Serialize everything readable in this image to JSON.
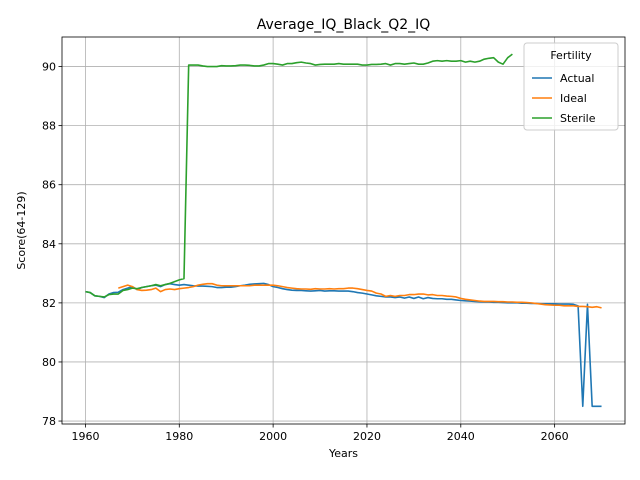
{
  "chart_data": {
    "type": "line",
    "title": "Average_IQ_Black_Q2_IQ",
    "xlabel": "Years",
    "ylabel": "Score(64-129)",
    "xlim": [
      1955,
      2075
    ],
    "ylim": [
      77.9,
      91.0
    ],
    "xticks": [
      1960,
      1980,
      2000,
      2020,
      2040,
      2060
    ],
    "yticks": [
      78,
      80,
      82,
      84,
      86,
      88,
      90
    ],
    "grid": true,
    "legend": {
      "title": "Fertility",
      "placement": "top-right"
    },
    "series": [
      {
        "name": "Actual",
        "color": "#1f77b4",
        "points": [
          [
            1960,
            82.38
          ],
          [
            1961,
            82.35
          ],
          [
            1962,
            82.24
          ],
          [
            1963,
            82.22
          ],
          [
            1964,
            82.18
          ],
          [
            1965,
            82.3
          ],
          [
            1966,
            82.35
          ],
          [
            1967,
            82.36
          ],
          [
            1968,
            82.45
          ],
          [
            1969,
            82.5
          ],
          [
            1970,
            82.55
          ],
          [
            1971,
            82.45
          ],
          [
            1972,
            82.52
          ],
          [
            1973,
            82.55
          ],
          [
            1974,
            82.58
          ],
          [
            1975,
            82.6
          ],
          [
            1976,
            82.55
          ],
          [
            1977,
            82.62
          ],
          [
            1978,
            82.65
          ],
          [
            1979,
            82.62
          ],
          [
            1980,
            82.6
          ],
          [
            1981,
            82.62
          ],
          [
            1982,
            82.6
          ],
          [
            1983,
            82.58
          ],
          [
            1984,
            82.57
          ],
          [
            1985,
            82.57
          ],
          [
            1986,
            82.56
          ],
          [
            1987,
            82.55
          ],
          [
            1988,
            82.52
          ],
          [
            1989,
            82.52
          ],
          [
            1990,
            82.53
          ],
          [
            1991,
            82.53
          ],
          [
            1992,
            82.55
          ],
          [
            1993,
            82.58
          ],
          [
            1994,
            82.6
          ],
          [
            1995,
            82.63
          ],
          [
            1996,
            82.64
          ],
          [
            1997,
            82.65
          ],
          [
            1998,
            82.66
          ],
          [
            1999,
            82.62
          ],
          [
            2000,
            82.55
          ],
          [
            2001,
            82.52
          ],
          [
            2002,
            82.48
          ],
          [
            2003,
            82.45
          ],
          [
            2004,
            82.43
          ],
          [
            2005,
            82.42
          ],
          [
            2006,
            82.42
          ],
          [
            2007,
            82.41
          ],
          [
            2008,
            82.4
          ],
          [
            2009,
            82.41
          ],
          [
            2010,
            82.42
          ],
          [
            2011,
            82.4
          ],
          [
            2012,
            82.41
          ],
          [
            2013,
            82.41
          ],
          [
            2014,
            82.4
          ],
          [
            2015,
            82.4
          ],
          [
            2016,
            82.4
          ],
          [
            2017,
            82.38
          ],
          [
            2018,
            82.35
          ],
          [
            2019,
            82.33
          ],
          [
            2020,
            82.3
          ],
          [
            2021,
            82.27
          ],
          [
            2022,
            82.24
          ],
          [
            2023,
            82.22
          ],
          [
            2024,
            82.2
          ],
          [
            2025,
            82.2
          ],
          [
            2026,
            82.18
          ],
          [
            2027,
            82.2
          ],
          [
            2028,
            82.16
          ],
          [
            2029,
            82.2
          ],
          [
            2030,
            82.15
          ],
          [
            2031,
            82.2
          ],
          [
            2032,
            82.14
          ],
          [
            2033,
            82.18
          ],
          [
            2034,
            82.15
          ],
          [
            2035,
            82.14
          ],
          [
            2036,
            82.14
          ],
          [
            2037,
            82.12
          ],
          [
            2038,
            82.12
          ],
          [
            2039,
            82.1
          ],
          [
            2040,
            82.08
          ],
          [
            2041,
            82.07
          ],
          [
            2042,
            82.06
          ],
          [
            2043,
            82.05
          ],
          [
            2044,
            82.04
          ],
          [
            2045,
            82.03
          ],
          [
            2046,
            82.03
          ],
          [
            2047,
            82.02
          ],
          [
            2048,
            82.02
          ],
          [
            2049,
            82.01
          ],
          [
            2050,
            82.0
          ],
          [
            2051,
            82.0
          ],
          [
            2052,
            82.0
          ],
          [
            2053,
            81.99
          ],
          [
            2054,
            81.99
          ],
          [
            2055,
            81.98
          ],
          [
            2056,
            81.98
          ],
          [
            2057,
            81.97
          ],
          [
            2058,
            81.97
          ],
          [
            2059,
            81.97
          ],
          [
            2060,
            81.97
          ],
          [
            2061,
            81.96
          ],
          [
            2062,
            81.96
          ],
          [
            2063,
            81.96
          ],
          [
            2064,
            81.95
          ],
          [
            2065,
            81.9
          ],
          [
            2066,
            78.5
          ],
          [
            2067,
            81.95
          ],
          [
            2068,
            78.5
          ],
          [
            2069,
            78.5
          ],
          [
            2070,
            78.5
          ]
        ]
      },
      {
        "name": "Ideal",
        "color": "#ff7f0e",
        "points": [
          [
            1967,
            82.5
          ],
          [
            1968,
            82.55
          ],
          [
            1969,
            82.6
          ],
          [
            1970,
            82.55
          ],
          [
            1971,
            82.45
          ],
          [
            1972,
            82.42
          ],
          [
            1973,
            82.43
          ],
          [
            1974,
            82.45
          ],
          [
            1975,
            82.5
          ],
          [
            1976,
            82.38
          ],
          [
            1977,
            82.45
          ],
          [
            1978,
            82.47
          ],
          [
            1979,
            82.45
          ],
          [
            1980,
            82.48
          ],
          [
            1981,
            82.5
          ],
          [
            1982,
            82.52
          ],
          [
            1983,
            82.55
          ],
          [
            1984,
            82.6
          ],
          [
            1985,
            82.63
          ],
          [
            1986,
            82.65
          ],
          [
            1987,
            82.65
          ],
          [
            1988,
            82.6
          ],
          [
            1989,
            82.58
          ],
          [
            1990,
            82.58
          ],
          [
            1991,
            82.58
          ],
          [
            1992,
            82.58
          ],
          [
            1993,
            82.58
          ],
          [
            1994,
            82.58
          ],
          [
            1995,
            82.58
          ],
          [
            1996,
            82.6
          ],
          [
            1997,
            82.6
          ],
          [
            1998,
            82.6
          ],
          [
            1999,
            82.6
          ],
          [
            2000,
            82.6
          ],
          [
            2001,
            82.58
          ],
          [
            2002,
            82.55
          ],
          [
            2003,
            82.52
          ],
          [
            2004,
            82.5
          ],
          [
            2005,
            82.48
          ],
          [
            2006,
            82.47
          ],
          [
            2007,
            82.47
          ],
          [
            2008,
            82.46
          ],
          [
            2009,
            82.48
          ],
          [
            2010,
            82.47
          ],
          [
            2011,
            82.47
          ],
          [
            2012,
            82.48
          ],
          [
            2013,
            82.47
          ],
          [
            2014,
            82.48
          ],
          [
            2015,
            82.48
          ],
          [
            2016,
            82.5
          ],
          [
            2017,
            82.5
          ],
          [
            2018,
            82.48
          ],
          [
            2019,
            82.45
          ],
          [
            2020,
            82.42
          ],
          [
            2021,
            82.4
          ],
          [
            2022,
            82.33
          ],
          [
            2023,
            82.3
          ],
          [
            2024,
            82.22
          ],
          [
            2025,
            82.25
          ],
          [
            2026,
            82.22
          ],
          [
            2027,
            82.25
          ],
          [
            2028,
            82.25
          ],
          [
            2029,
            82.28
          ],
          [
            2030,
            82.28
          ],
          [
            2031,
            82.3
          ],
          [
            2032,
            82.3
          ],
          [
            2033,
            82.27
          ],
          [
            2034,
            82.28
          ],
          [
            2035,
            82.25
          ],
          [
            2036,
            82.25
          ],
          [
            2037,
            82.23
          ],
          [
            2038,
            82.22
          ],
          [
            2039,
            82.2
          ],
          [
            2040,
            82.15
          ],
          [
            2041,
            82.12
          ],
          [
            2042,
            82.1
          ],
          [
            2043,
            82.08
          ],
          [
            2044,
            82.06
          ],
          [
            2045,
            82.05
          ],
          [
            2046,
            82.05
          ],
          [
            2047,
            82.05
          ],
          [
            2048,
            82.04
          ],
          [
            2049,
            82.04
          ],
          [
            2050,
            82.03
          ],
          [
            2051,
            82.03
          ],
          [
            2052,
            82.02
          ],
          [
            2053,
            82.02
          ],
          [
            2054,
            82.01
          ],
          [
            2055,
            82.0
          ],
          [
            2056,
            81.98
          ],
          [
            2057,
            81.96
          ],
          [
            2058,
            81.94
          ],
          [
            2059,
            81.93
          ],
          [
            2060,
            81.92
          ],
          [
            2061,
            81.92
          ],
          [
            2062,
            81.9
          ],
          [
            2063,
            81.9
          ],
          [
            2064,
            81.9
          ],
          [
            2065,
            81.88
          ],
          [
            2066,
            81.88
          ],
          [
            2067,
            81.87
          ],
          [
            2068,
            81.85
          ],
          [
            2069,
            81.87
          ],
          [
            2070,
            81.83
          ]
        ]
      },
      {
        "name": "Sterile",
        "color": "#2ca02c",
        "points": [
          [
            1960,
            82.38
          ],
          [
            1961,
            82.35
          ],
          [
            1962,
            82.24
          ],
          [
            1963,
            82.22
          ],
          [
            1964,
            82.2
          ],
          [
            1965,
            82.28
          ],
          [
            1966,
            82.3
          ],
          [
            1967,
            82.3
          ],
          [
            1968,
            82.42
          ],
          [
            1969,
            82.45
          ],
          [
            1970,
            82.5
          ],
          [
            1971,
            82.48
          ],
          [
            1972,
            82.52
          ],
          [
            1973,
            82.55
          ],
          [
            1974,
            82.58
          ],
          [
            1975,
            82.62
          ],
          [
            1976,
            82.58
          ],
          [
            1977,
            82.62
          ],
          [
            1978,
            82.66
          ],
          [
            1979,
            82.72
          ],
          [
            1980,
            82.78
          ],
          [
            1981,
            82.82
          ],
          [
            1982,
            90.05
          ],
          [
            1983,
            90.05
          ],
          [
            1984,
            90.05
          ],
          [
            1985,
            90.02
          ],
          [
            1986,
            90.0
          ],
          [
            1987,
            90.0
          ],
          [
            1988,
            90.0
          ],
          [
            1989,
            90.03
          ],
          [
            1990,
            90.02
          ],
          [
            1991,
            90.02
          ],
          [
            1992,
            90.03
          ],
          [
            1993,
            90.05
          ],
          [
            1994,
            90.05
          ],
          [
            1995,
            90.04
          ],
          [
            1996,
            90.02
          ],
          [
            1997,
            90.02
          ],
          [
            1998,
            90.05
          ],
          [
            1999,
            90.1
          ],
          [
            2000,
            90.1
          ],
          [
            2001,
            90.08
          ],
          [
            2002,
            90.05
          ],
          [
            2003,
            90.1
          ],
          [
            2004,
            90.1
          ],
          [
            2005,
            90.13
          ],
          [
            2006,
            90.15
          ],
          [
            2007,
            90.12
          ],
          [
            2008,
            90.1
          ],
          [
            2009,
            90.05
          ],
          [
            2010,
            90.07
          ],
          [
            2011,
            90.08
          ],
          [
            2012,
            90.08
          ],
          [
            2013,
            90.08
          ],
          [
            2014,
            90.1
          ],
          [
            2015,
            90.08
          ],
          [
            2016,
            90.08
          ],
          [
            2017,
            90.08
          ],
          [
            2018,
            90.08
          ],
          [
            2019,
            90.05
          ],
          [
            2020,
            90.05
          ],
          [
            2021,
            90.07
          ],
          [
            2022,
            90.07
          ],
          [
            2023,
            90.08
          ],
          [
            2024,
            90.1
          ],
          [
            2025,
            90.05
          ],
          [
            2026,
            90.1
          ],
          [
            2027,
            90.1
          ],
          [
            2028,
            90.08
          ],
          [
            2029,
            90.1
          ],
          [
            2030,
            90.12
          ],
          [
            2031,
            90.08
          ],
          [
            2032,
            90.08
          ],
          [
            2033,
            90.12
          ],
          [
            2034,
            90.18
          ],
          [
            2035,
            90.2
          ],
          [
            2036,
            90.18
          ],
          [
            2037,
            90.2
          ],
          [
            2038,
            90.18
          ],
          [
            2039,
            90.18
          ],
          [
            2040,
            90.2
          ],
          [
            2041,
            90.15
          ],
          [
            2042,
            90.18
          ],
          [
            2043,
            90.15
          ],
          [
            2044,
            90.18
          ],
          [
            2045,
            90.25
          ],
          [
            2046,
            90.28
          ],
          [
            2047,
            90.3
          ],
          [
            2048,
            90.15
          ],
          [
            2049,
            90.08
          ],
          [
            2050,
            90.3
          ],
          [
            2051,
            90.42
          ]
        ]
      }
    ]
  }
}
